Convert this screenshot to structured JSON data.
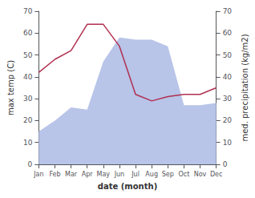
{
  "chart_data": {
    "type": "line",
    "xlabel": "date (month)",
    "ylabel": "max temp (C)",
    "y2label": "med. precipitation (kg/m2)",
    "categories": [
      "Jan",
      "Feb",
      "Mar",
      "Apr",
      "May",
      "Jun",
      "Jul",
      "Aug",
      "Sep",
      "Oct",
      "Nov",
      "Dec"
    ],
    "series": [
      {
        "type": "area",
        "axis": "y2",
        "color": "#b8c4e8",
        "values": [
          15,
          20,
          26,
          25,
          47,
          58,
          57,
          57,
          54,
          27,
          27,
          28
        ]
      },
      {
        "type": "line",
        "color": "#b03050",
        "values": [
          42,
          48,
          52,
          64,
          64,
          54,
          32,
          29,
          31,
          32,
          32,
          35
        ]
      }
    ],
    "ylim": [
      0,
      70
    ],
    "yticks": [
      0,
      10,
      20,
      30,
      40,
      50,
      60,
      70
    ],
    "y2lim": [
      0,
      70
    ],
    "y2ticks": [
      0,
      10,
      20,
      30,
      40,
      50,
      60,
      70
    ],
    "grid": false
  }
}
